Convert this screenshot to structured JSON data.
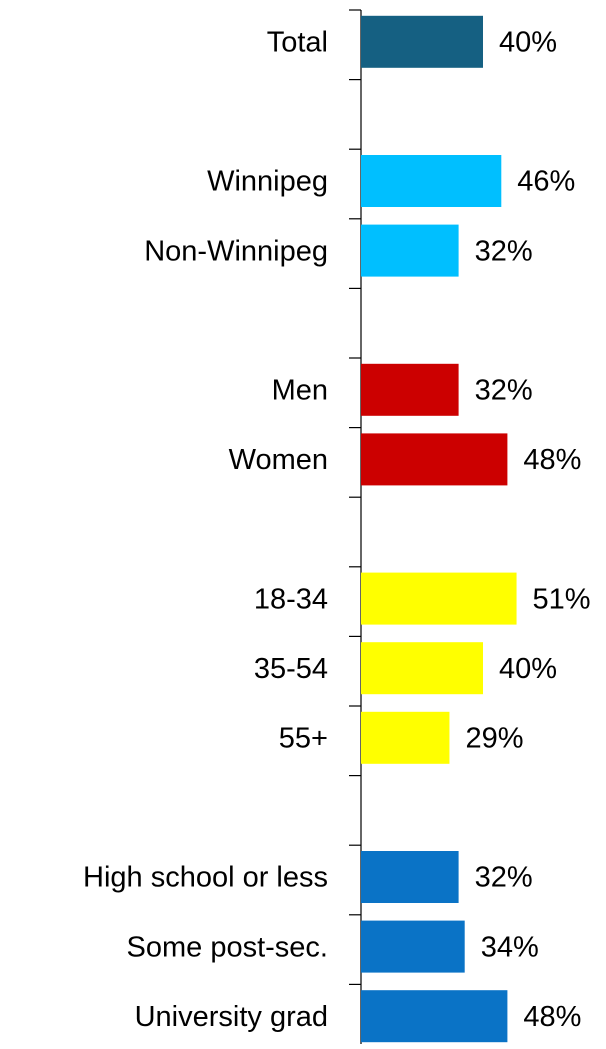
{
  "chart_data": {
    "type": "hbar",
    "categories": [
      "Total",
      null,
      "Winnipeg",
      "Non-Winnipeg",
      null,
      "Men",
      "Women",
      null,
      "18-34",
      "35-54",
      "55+",
      null,
      "High school or less",
      "Some post-sec.",
      "University grad"
    ],
    "values": [
      40,
      null,
      46,
      32,
      null,
      32,
      48,
      null,
      51,
      40,
      29,
      null,
      32,
      34,
      48
    ],
    "value_labels": [
      "40%",
      null,
      "46%",
      "32%",
      null,
      "32%",
      "48%",
      null,
      "51%",
      "40%",
      "29%",
      null,
      "32%",
      "34%",
      "48%"
    ],
    "colors": [
      "#156082",
      null,
      "#00bfff",
      "#00bfff",
      null,
      "#cc0000",
      "#cc0000",
      null,
      "#ffff00",
      "#ffff00",
      "#ffff00",
      null,
      "#0a73c6",
      "#0a73c6",
      "#0a73c6"
    ]
  }
}
